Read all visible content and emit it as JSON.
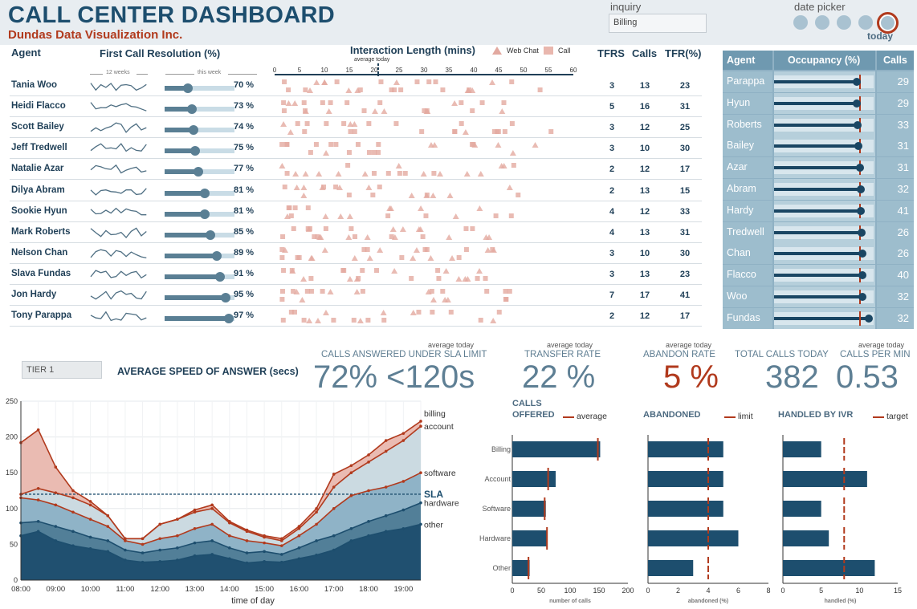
{
  "header": {
    "title": "CALL CENTER DASHBOARD",
    "subtitle": "Dundas Data Visualization Inc.",
    "inquiry_label": "inquiry",
    "inquiry_value": "Billing",
    "date_picker_label": "date picker",
    "today_label": "today"
  },
  "columns": {
    "agent": "Agent",
    "fcr": "First Call Resolution (%)",
    "weeks": "12 weeks",
    "this_week": "this week",
    "interaction": "Interaction Length (mins)",
    "web_chat": "Web Chat",
    "call": "Call",
    "average_today": "average today",
    "tfrs": "TFRS",
    "calls": "Calls",
    "tfr": "TFR(%)",
    "axis_ticks": [
      "0",
      "5",
      "10",
      "15",
      "20",
      "25",
      "30",
      "35",
      "40",
      "45",
      "50",
      "55",
      "60"
    ]
  },
  "agents": [
    {
      "name": "Tania Woo",
      "fcr": "70 %",
      "fcr_value": 0.7,
      "tfrs": "3",
      "calls": "13",
      "tfr": "23"
    },
    {
      "name": "Heidi Flacco",
      "fcr": "73 %",
      "fcr_value": 0.73,
      "tfrs": "5",
      "calls": "16",
      "tfr": "31"
    },
    {
      "name": "Scott Bailey",
      "fcr": "74 %",
      "fcr_value": 0.74,
      "tfrs": "3",
      "calls": "12",
      "tfr": "25"
    },
    {
      "name": "Jeff Tredwell",
      "fcr": "75 %",
      "fcr_value": 0.75,
      "tfrs": "3",
      "calls": "10",
      "tfr": "30"
    },
    {
      "name": "Natalie Azar",
      "fcr": "77 %",
      "fcr_value": 0.77,
      "tfrs": "2",
      "calls": "12",
      "tfr": "17"
    },
    {
      "name": "Dilya Abram",
      "fcr": "81 %",
      "fcr_value": 0.81,
      "tfrs": "2",
      "calls": "13",
      "tfr": "15"
    },
    {
      "name": "Sookie Hyun",
      "fcr": "81 %",
      "fcr_value": 0.81,
      "tfrs": "4",
      "calls": "12",
      "tfr": "33"
    },
    {
      "name": "Mark Roberts",
      "fcr": "85 %",
      "fcr_value": 0.85,
      "tfrs": "4",
      "calls": "13",
      "tfr": "31"
    },
    {
      "name": "Nelson Chan",
      "fcr": "89 %",
      "fcr_value": 0.89,
      "tfrs": "3",
      "calls": "10",
      "tfr": "30"
    },
    {
      "name": "Slava Fundas",
      "fcr": "91 %",
      "fcr_value": 0.91,
      "tfrs": "3",
      "calls": "13",
      "tfr": "23"
    },
    {
      "name": "Jon Hardy",
      "fcr": "95 %",
      "fcr_value": 0.95,
      "tfrs": "7",
      "calls": "17",
      "tfr": "41"
    },
    {
      "name": "Tony Parappa",
      "fcr": "97 %",
      "fcr_value": 0.97,
      "tfrs": "2",
      "calls": "12",
      "tfr": "17"
    }
  ],
  "occupancy": {
    "headers": [
      "Agent",
      "Occupancy (%)",
      "Calls"
    ],
    "rows": [
      {
        "name": "Parappa",
        "value": 0.83,
        "calls": "29"
      },
      {
        "name": "Hyun",
        "value": 0.83,
        "calls": "29"
      },
      {
        "name": "Roberts",
        "value": 0.84,
        "calls": "33"
      },
      {
        "name": "Bailey",
        "value": 0.85,
        "calls": "31"
      },
      {
        "name": "Azar",
        "value": 0.86,
        "calls": "31"
      },
      {
        "name": "Abram",
        "value": 0.87,
        "calls": "32"
      },
      {
        "name": "Hardy",
        "value": 0.87,
        "calls": "41"
      },
      {
        "name": "Tredwell",
        "value": 0.88,
        "calls": "26"
      },
      {
        "name": "Chan",
        "value": 0.89,
        "calls": "26"
      },
      {
        "name": "Flacco",
        "value": 0.89,
        "calls": "40"
      },
      {
        "name": "Woo",
        "value": 0.89,
        "calls": "32"
      },
      {
        "name": "Fundas",
        "value": 0.95,
        "calls": "32"
      }
    ]
  },
  "speed": {
    "tier": "TIER 1",
    "title": "AVERAGE SPEED OF ANSWER (secs)"
  },
  "kpis": {
    "avg_today": "average today",
    "sla_label": "CALLS ANSWERED UNDER SLA LIMIT",
    "sla_value": "72% <120s",
    "transfer_label": "TRANSFER RATE",
    "transfer_value": "22 %",
    "abandon_label": "ABANDON RATE",
    "abandon_value": "5 %",
    "total_label": "TOTAL CALLS TODAY",
    "total_value": "382",
    "cpm_label": "CALLS PER MIN",
    "cpm_value": "0.53"
  },
  "bar_charts": {
    "calls_offered": {
      "title_1": "CALLS",
      "title_2": "OFFERED",
      "legend": "average",
      "xlabel": "number of calls"
    },
    "abandoned": {
      "title": "ABANDONED",
      "legend": "limit",
      "xlabel": "abandoned (%)"
    },
    "ivr": {
      "title": "HANDLED BY IVR",
      "legend": "target",
      "xlabel": "handled (%)"
    }
  },
  "chart_data": [
    {
      "type": "area",
      "xlabel": "time of day",
      "ylabel": "",
      "ylim": [
        0,
        250
      ],
      "yticks": [
        "0",
        "50",
        "100",
        "150",
        "200",
        "250"
      ],
      "x": [
        "08:00",
        "08:30",
        "09:00",
        "09:30",
        "10:00",
        "10:30",
        "11:00",
        "11:30",
        "12:00",
        "12:30",
        "13:00",
        "13:30",
        "14:00",
        "14:30",
        "15:00",
        "15:30",
        "16:00",
        "16:30",
        "17:00",
        "17:30",
        "18:00",
        "18:30",
        "19:00",
        "19:30"
      ],
      "xticks": [
        "08:00",
        "09:00",
        "10:00",
        "11:00",
        "12:00",
        "13:00",
        "14:00",
        "15:00",
        "16:00",
        "17:00",
        "18:00",
        "19:00"
      ],
      "sla_label": "SLA",
      "sla_value": 120,
      "series": [
        {
          "name": "other",
          "color": "#1d4e6e",
          "values": [
            62,
            68,
            55,
            48,
            44,
            40,
            28,
            25,
            26,
            28,
            34,
            36,
            30,
            24,
            26,
            25,
            30,
            35,
            42,
            55,
            62,
            68,
            72,
            78
          ]
        },
        {
          "name": "hardware",
          "color": "#4f7c96",
          "values": [
            80,
            82,
            75,
            68,
            60,
            55,
            42,
            38,
            42,
            45,
            52,
            55,
            45,
            38,
            40,
            36,
            45,
            55,
            62,
            72,
            82,
            90,
            98,
            108
          ]
        },
        {
          "name": "software",
          "color": "#8bb1c5",
          "values": [
            115,
            112,
            105,
            95,
            85,
            75,
            55,
            50,
            58,
            62,
            72,
            78,
            62,
            55,
            52,
            48,
            62,
            78,
            100,
            118,
            125,
            130,
            138,
            150
          ]
        },
        {
          "name": "account",
          "color": "#c9dbe4",
          "values": [
            120,
            128,
            122,
            115,
            105,
            90,
            58,
            58,
            78,
            85,
            95,
            100,
            80,
            68,
            60,
            55,
            72,
            95,
            130,
            150,
            165,
            180,
            195,
            215
          ]
        },
        {
          "name": "billing",
          "color": "#e9b7ae",
          "values": [
            192,
            210,
            158,
            125,
            110,
            90,
            58,
            58,
            78,
            85,
            98,
            105,
            82,
            70,
            62,
            58,
            75,
            100,
            148,
            160,
            175,
            195,
            205,
            222
          ]
        }
      ]
    },
    {
      "type": "bar",
      "title": "CALLS OFFERED",
      "categories": [
        "Billing",
        "Account",
        "Software",
        "Hardware",
        "Other"
      ],
      "values": [
        152,
        75,
        58,
        60,
        30
      ],
      "reference": [
        148,
        62,
        56,
        60,
        28
      ],
      "xlim": [
        0,
        200
      ],
      "xticks": [
        "0",
        "50",
        "100",
        "150",
        "200"
      ]
    },
    {
      "type": "bar",
      "title": "ABANDONED",
      "categories": [
        "Billing",
        "Account",
        "Software",
        "Hardware",
        "Other"
      ],
      "values": [
        5,
        5,
        5,
        6,
        3
      ],
      "reference": [
        4,
        4,
        4,
        4,
        4
      ],
      "xlim": [
        0,
        8
      ],
      "xticks": [
        "0",
        "2",
        "4",
        "6",
        "8"
      ]
    },
    {
      "type": "bar",
      "title": "HANDLED BY IVR",
      "categories": [
        "Billing",
        "Account",
        "Software",
        "Hardware",
        "Other"
      ],
      "values": [
        5,
        11,
        5,
        6,
        12
      ],
      "reference": [
        8,
        8,
        8,
        8,
        8
      ],
      "xlim": [
        0,
        15
      ],
      "xticks": [
        "0",
        "5",
        "10",
        "15"
      ]
    }
  ]
}
